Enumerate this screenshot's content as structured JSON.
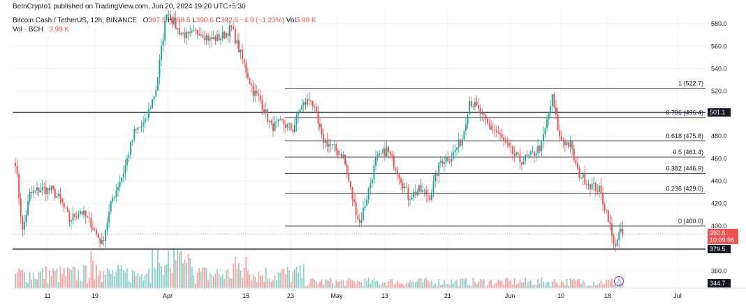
{
  "header": {
    "publisher": "BeInCrypto1 published on TradingView.com, Jun 20, 2024 19:20 UTC+5:30",
    "symbol": "Bitcoin Cash / TetherUS, 12h, BINANCE",
    "o_label": "O",
    "o_value": "397.5",
    "h_label": "H",
    "h_value": "398.6",
    "l_label": "L",
    "l_value": "390.6",
    "c_label": "C",
    "c_value": "392.6",
    "change": "−4.9 (−1.23%)",
    "vol_label": "Vol",
    "vol_value": "3.99 K",
    "vol_line_label": "Vol · BCH",
    "vol_line_value": "3.99 K"
  },
  "colors": {
    "up": "#26a69a",
    "down": "#ef5350",
    "up_vol": "#8fd0c9",
    "down_vol": "#f5a5a3",
    "line": "#131722"
  },
  "chart_data": {
    "type": "candlestick",
    "price_axis": {
      "min": 344.7,
      "max": 590,
      "ticks": [
        "580.0",
        "560.0",
        "540.0",
        "520.0",
        "500.0",
        "480.0",
        "460.0",
        "440.0",
        "420.0",
        "400.0",
        "380.0",
        "360.0"
      ]
    },
    "x_ticks": [
      "11",
      "19",
      "Apr",
      "15",
      "23",
      "May",
      "13",
      "21",
      "Jun",
      "10",
      "18",
      "Jul"
    ],
    "horizontal_lines": [
      {
        "value": 501.1,
        "label": "501.1"
      },
      {
        "value": 379.5,
        "label": "379.5"
      }
    ],
    "bottom_label": "344.7",
    "current_price": {
      "value": 392.6,
      "label": "392.6",
      "countdown": "10:09:36"
    },
    "fibonacci": [
      {
        "ratio": "1",
        "value": 522.7,
        "label": "1 (522.7)"
      },
      {
        "ratio": "0.786",
        "value": 496.4,
        "label": "0.786 (496.4)"
      },
      {
        "ratio": "0.618",
        "value": 475.8,
        "label": "0.618 (475.8)"
      },
      {
        "ratio": "0.5",
        "value": 461.4,
        "label": "0.5 (461.4)"
      },
      {
        "ratio": "0.382",
        "value": 446.9,
        "label": "0.382 (446.9)"
      },
      {
        "ratio": "0.236",
        "value": 429.0,
        "label": "0.236 (429.0)"
      },
      {
        "ratio": "0",
        "value": 400.0,
        "label": "0 (400.0)"
      }
    ],
    "anchors": [
      {
        "i": 0,
        "c": 458
      },
      {
        "i": 4,
        "c": 395
      },
      {
        "i": 8,
        "c": 428
      },
      {
        "i": 14,
        "c": 433
      },
      {
        "i": 20,
        "c": 432
      },
      {
        "i": 25,
        "c": 423
      },
      {
        "i": 30,
        "c": 405
      },
      {
        "i": 36,
        "c": 414
      },
      {
        "i": 42,
        "c": 402
      },
      {
        "i": 48,
        "c": 384
      },
      {
        "i": 54,
        "c": 425
      },
      {
        "i": 60,
        "c": 448
      },
      {
        "i": 66,
        "c": 483
      },
      {
        "i": 72,
        "c": 492
      },
      {
        "i": 78,
        "c": 522
      },
      {
        "i": 84,
        "c": 592
      },
      {
        "i": 90,
        "c": 575
      },
      {
        "i": 96,
        "c": 568
      },
      {
        "i": 102,
        "c": 574
      },
      {
        "i": 108,
        "c": 566
      },
      {
        "i": 114,
        "c": 568
      },
      {
        "i": 120,
        "c": 576
      },
      {
        "i": 126,
        "c": 548
      },
      {
        "i": 132,
        "c": 520
      },
      {
        "i": 136,
        "c": 512
      },
      {
        "i": 142,
        "c": 488
      },
      {
        "i": 148,
        "c": 492
      },
      {
        "i": 154,
        "c": 486
      },
      {
        "i": 158,
        "c": 505
      },
      {
        "i": 164,
        "c": 514
      },
      {
        "i": 170,
        "c": 478
      },
      {
        "i": 176,
        "c": 470
      },
      {
        "i": 182,
        "c": 462
      },
      {
        "i": 187,
        "c": 425
      },
      {
        "i": 191,
        "c": 402
      },
      {
        "i": 196,
        "c": 432
      },
      {
        "i": 200,
        "c": 458
      },
      {
        "i": 206,
        "c": 468
      },
      {
        "i": 212,
        "c": 450
      },
      {
        "i": 218,
        "c": 426
      },
      {
        "i": 224,
        "c": 432
      },
      {
        "i": 230,
        "c": 427
      },
      {
        "i": 236,
        "c": 458
      },
      {
        "i": 242,
        "c": 462
      },
      {
        "i": 248,
        "c": 478
      },
      {
        "i": 252,
        "c": 512
      },
      {
        "i": 256,
        "c": 505
      },
      {
        "i": 262,
        "c": 490
      },
      {
        "i": 268,
        "c": 482
      },
      {
        "i": 274,
        "c": 468
      },
      {
        "i": 280,
        "c": 458
      },
      {
        "i": 286,
        "c": 462
      },
      {
        "i": 292,
        "c": 472
      },
      {
        "i": 298,
        "c": 514
      },
      {
        "i": 302,
        "c": 478
      },
      {
        "i": 308,
        "c": 472
      },
      {
        "i": 312,
        "c": 448
      },
      {
        "i": 318,
        "c": 438
      },
      {
        "i": 324,
        "c": 432
      },
      {
        "i": 329,
        "c": 408
      },
      {
        "i": 332,
        "c": 382
      },
      {
        "i": 335,
        "c": 393
      },
      {
        "i": 337,
        "c": 392.6
      }
    ]
  }
}
